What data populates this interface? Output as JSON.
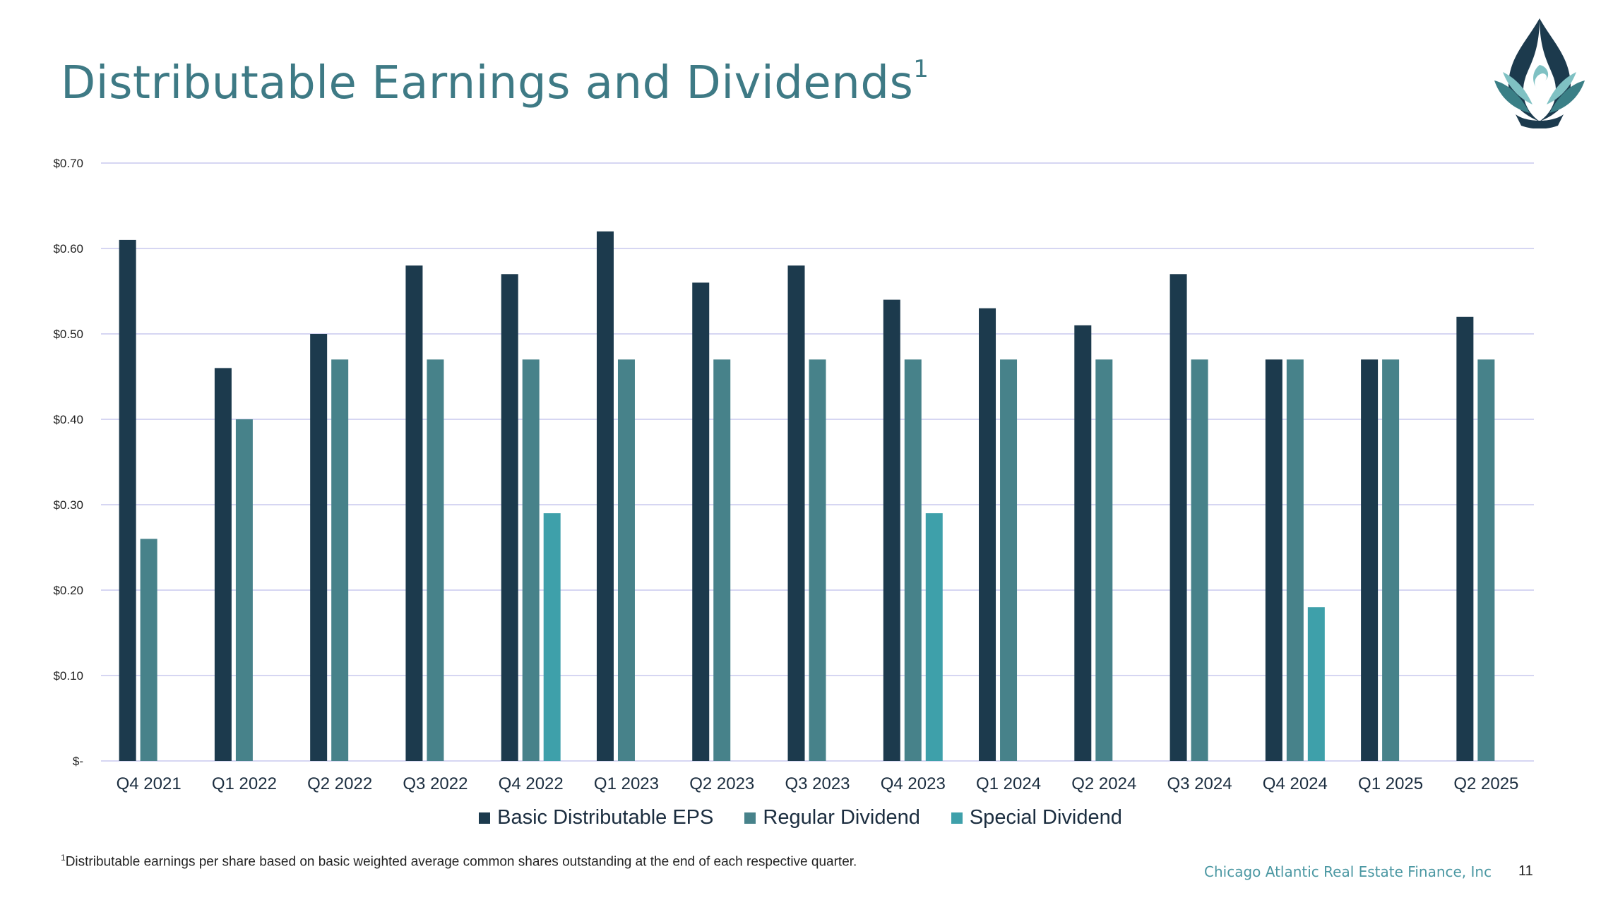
{
  "slide": {
    "title": "Distributable Earnings and Dividends",
    "title_superscript": "1",
    "footnote_marker": "1",
    "footnote": "Distributable earnings per share based on basic weighted average common shares outstanding at the end of each respective quarter.",
    "company": "Chicago Atlantic Real Estate Finance, Inc",
    "page_number": "11"
  },
  "colors": {
    "eps": "#1c3a4d",
    "regular": "#47828a",
    "special": "#3ea0aa",
    "grid": "#c9c9ee",
    "title": "#3e7a85",
    "logo_dark": "#1c3a4d",
    "logo_mid": "#3a7f86",
    "logo_light": "#7fc1c3"
  },
  "icons": {
    "logo": "phoenix-flame-logo-icon"
  },
  "chart_data": {
    "type": "bar",
    "title": "",
    "xlabel": "",
    "ylabel": "",
    "ylim": [
      0,
      0.7
    ],
    "y_ticks": [
      {
        "value": 0,
        "label": "$-"
      },
      {
        "value": 0.1,
        "label": "$0.10"
      },
      {
        "value": 0.2,
        "label": "$0.20"
      },
      {
        "value": 0.3,
        "label": "$0.30"
      },
      {
        "value": 0.4,
        "label": "$0.40"
      },
      {
        "value": 0.5,
        "label": "$0.50"
      },
      {
        "value": 0.6,
        "label": "$0.60"
      },
      {
        "value": 0.7,
        "label": "$0.70"
      }
    ],
    "grid": true,
    "legend_position": "bottom-center",
    "categories": [
      "Q4 2021",
      "Q1 2022",
      "Q2 2022",
      "Q3 2022",
      "Q4 2022",
      "Q1 2023",
      "Q2 2023",
      "Q3 2023",
      "Q4 2023",
      "Q1 2024",
      "Q2 2024",
      "Q3 2024",
      "Q4 2024",
      "Q1 2025",
      "Q2 2025"
    ],
    "series": [
      {
        "name": "Basic Distributable EPS",
        "color_key": "eps",
        "values": [
          0.61,
          0.46,
          0.5,
          0.58,
          0.57,
          0.62,
          0.56,
          0.58,
          0.54,
          0.53,
          0.51,
          0.57,
          0.47,
          0.47,
          0.52
        ]
      },
      {
        "name": "Regular Dividend",
        "color_key": "regular",
        "values": [
          0.26,
          0.4,
          0.47,
          0.47,
          0.47,
          0.47,
          0.47,
          0.47,
          0.47,
          0.47,
          0.47,
          0.47,
          0.47,
          0.47,
          0.47
        ]
      },
      {
        "name": "Special Dividend",
        "color_key": "special",
        "values": [
          null,
          null,
          null,
          null,
          0.29,
          null,
          null,
          null,
          0.29,
          null,
          null,
          null,
          0.18,
          null,
          null
        ]
      }
    ]
  }
}
